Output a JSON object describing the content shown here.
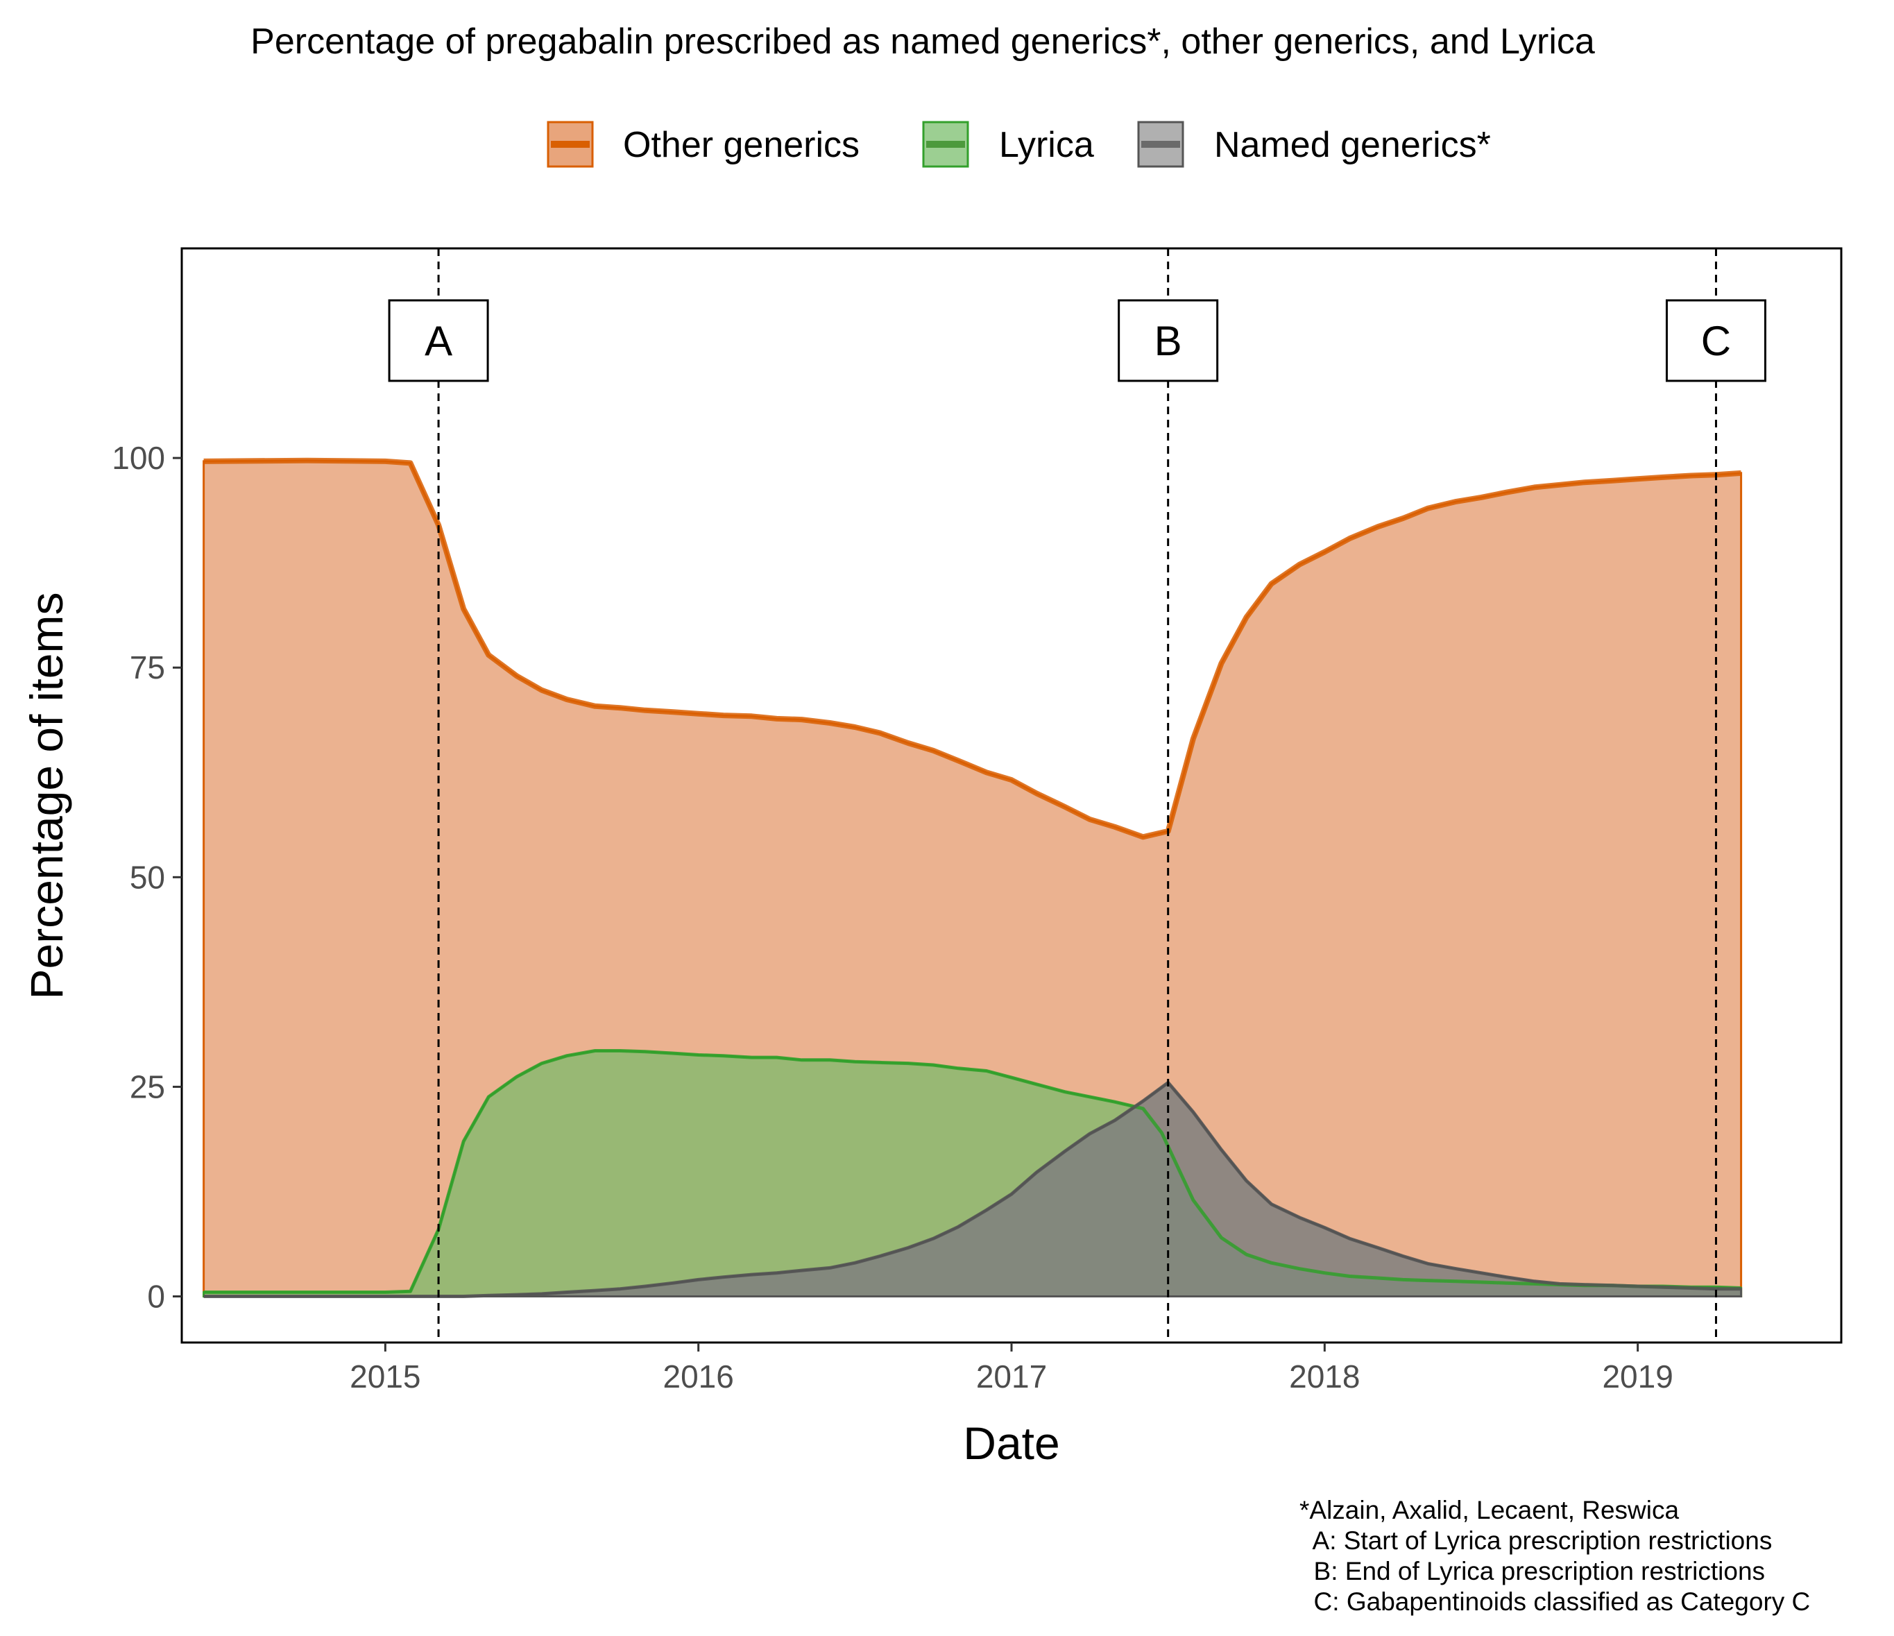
{
  "chart_data": {
    "type": "area",
    "title": "Percentage of pregabalin prescribed as named generics*, other generics, and Lyrica",
    "xlabel": "Date",
    "ylabel": "Percentage of items",
    "xlim": [
      2014.35,
      2019.65
    ],
    "ylim": [
      -5.5,
      125
    ],
    "x_ticks": [
      2015,
      2016,
      2017,
      2018,
      2019
    ],
    "y_ticks": [
      0,
      25,
      50,
      75,
      100
    ],
    "grid": false,
    "legend_position": "top",
    "series": [
      {
        "name": "Other generics",
        "stroke": "#d95f02",
        "fill": "#e8a57c",
        "points": [
          [
            2014.42,
            99.6
          ],
          [
            2014.75,
            99.7
          ],
          [
            2015.0,
            99.6
          ],
          [
            2015.08,
            99.4
          ],
          [
            2015.17,
            92.0
          ],
          [
            2015.25,
            82.0
          ],
          [
            2015.33,
            76.5
          ],
          [
            2015.42,
            74.0
          ],
          [
            2015.5,
            72.3
          ],
          [
            2015.58,
            71.2
          ],
          [
            2015.67,
            70.4
          ],
          [
            2015.75,
            70.2
          ],
          [
            2015.83,
            69.9
          ],
          [
            2015.92,
            69.7
          ],
          [
            2016.0,
            69.5
          ],
          [
            2016.08,
            69.3
          ],
          [
            2016.17,
            69.2
          ],
          [
            2016.25,
            68.9
          ],
          [
            2016.33,
            68.8
          ],
          [
            2016.42,
            68.4
          ],
          [
            2016.5,
            67.9
          ],
          [
            2016.58,
            67.2
          ],
          [
            2016.67,
            66.0
          ],
          [
            2016.75,
            65.1
          ],
          [
            2016.83,
            63.9
          ],
          [
            2016.92,
            62.5
          ],
          [
            2017.0,
            61.6
          ],
          [
            2017.08,
            60.0
          ],
          [
            2017.17,
            58.4
          ],
          [
            2017.25,
            56.9
          ],
          [
            2017.33,
            56.0
          ],
          [
            2017.42,
            54.8
          ],
          [
            2017.5,
            55.5
          ],
          [
            2017.58,
            66.5
          ],
          [
            2017.67,
            75.5
          ],
          [
            2017.75,
            81.0
          ],
          [
            2017.83,
            85.0
          ],
          [
            2017.92,
            87.3
          ],
          [
            2018.0,
            88.8
          ],
          [
            2018.08,
            90.4
          ],
          [
            2018.17,
            91.8
          ],
          [
            2018.25,
            92.8
          ],
          [
            2018.33,
            94.0
          ],
          [
            2018.42,
            94.8
          ],
          [
            2018.5,
            95.3
          ],
          [
            2018.58,
            95.9
          ],
          [
            2018.67,
            96.5
          ],
          [
            2018.75,
            96.8
          ],
          [
            2018.83,
            97.1
          ],
          [
            2018.92,
            97.3
          ],
          [
            2019.0,
            97.5
          ],
          [
            2019.08,
            97.7
          ],
          [
            2019.17,
            97.9
          ],
          [
            2019.25,
            98.0
          ],
          [
            2019.33,
            98.2
          ]
        ]
      },
      {
        "name": "Lyrica",
        "stroke": "#33a02c",
        "fill": "#8ab870",
        "points": [
          [
            2014.42,
            0.5
          ],
          [
            2014.75,
            0.5
          ],
          [
            2015.0,
            0.5
          ],
          [
            2015.08,
            0.6
          ],
          [
            2015.17,
            8.0
          ],
          [
            2015.25,
            18.5
          ],
          [
            2015.33,
            23.8
          ],
          [
            2015.42,
            26.2
          ],
          [
            2015.5,
            27.8
          ],
          [
            2015.58,
            28.7
          ],
          [
            2015.67,
            29.3
          ],
          [
            2015.75,
            29.3
          ],
          [
            2015.83,
            29.2
          ],
          [
            2015.92,
            29.0
          ],
          [
            2016.0,
            28.8
          ],
          [
            2016.08,
            28.7
          ],
          [
            2016.17,
            28.5
          ],
          [
            2016.25,
            28.5
          ],
          [
            2016.33,
            28.2
          ],
          [
            2016.42,
            28.2
          ],
          [
            2016.5,
            28.0
          ],
          [
            2016.58,
            27.9
          ],
          [
            2016.67,
            27.8
          ],
          [
            2016.75,
            27.6
          ],
          [
            2016.83,
            27.2
          ],
          [
            2016.92,
            26.9
          ],
          [
            2017.0,
            26.1
          ],
          [
            2017.08,
            25.3
          ],
          [
            2017.17,
            24.4
          ],
          [
            2017.25,
            23.8
          ],
          [
            2017.33,
            23.2
          ],
          [
            2017.42,
            22.4
          ],
          [
            2017.48,
            19.5
          ],
          [
            2017.58,
            11.5
          ],
          [
            2017.67,
            7.0
          ],
          [
            2017.75,
            5.0
          ],
          [
            2017.83,
            4.0
          ],
          [
            2017.92,
            3.3
          ],
          [
            2018.0,
            2.8
          ],
          [
            2018.08,
            2.4
          ],
          [
            2018.17,
            2.2
          ],
          [
            2018.25,
            2.0
          ],
          [
            2018.33,
            1.9
          ],
          [
            2018.42,
            1.8
          ],
          [
            2018.5,
            1.7
          ],
          [
            2018.58,
            1.6
          ],
          [
            2018.67,
            1.5
          ],
          [
            2018.75,
            1.4
          ],
          [
            2018.83,
            1.3
          ],
          [
            2018.92,
            1.3
          ],
          [
            2019.0,
            1.2
          ],
          [
            2019.08,
            1.2
          ],
          [
            2019.17,
            1.1
          ],
          [
            2019.25,
            1.1
          ],
          [
            2019.33,
            1.0
          ]
        ]
      },
      {
        "name": "Named generics*",
        "stroke": "#555555",
        "fill": "#7f7f7f",
        "points": [
          [
            2014.42,
            0.0
          ],
          [
            2014.75,
            0.0
          ],
          [
            2015.0,
            0.0
          ],
          [
            2015.08,
            0.0
          ],
          [
            2015.17,
            0.0
          ],
          [
            2015.25,
            0.0
          ],
          [
            2015.33,
            0.1
          ],
          [
            2015.42,
            0.2
          ],
          [
            2015.5,
            0.3
          ],
          [
            2015.58,
            0.5
          ],
          [
            2015.67,
            0.7
          ],
          [
            2015.75,
            0.9
          ],
          [
            2015.83,
            1.2
          ],
          [
            2015.92,
            1.6
          ],
          [
            2016.0,
            2.0
          ],
          [
            2016.08,
            2.3
          ],
          [
            2016.17,
            2.6
          ],
          [
            2016.25,
            2.8
          ],
          [
            2016.33,
            3.1
          ],
          [
            2016.42,
            3.4
          ],
          [
            2016.5,
            4.0
          ],
          [
            2016.58,
            4.8
          ],
          [
            2016.67,
            5.8
          ],
          [
            2016.75,
            6.9
          ],
          [
            2016.83,
            8.3
          ],
          [
            2016.92,
            10.3
          ],
          [
            2017.0,
            12.2
          ],
          [
            2017.08,
            14.8
          ],
          [
            2017.17,
            17.3
          ],
          [
            2017.25,
            19.4
          ],
          [
            2017.33,
            21.0
          ],
          [
            2017.42,
            23.3
          ],
          [
            2017.5,
            25.5
          ],
          [
            2017.58,
            22.0
          ],
          [
            2017.67,
            17.5
          ],
          [
            2017.75,
            13.8
          ],
          [
            2017.83,
            11.0
          ],
          [
            2017.92,
            9.4
          ],
          [
            2018.0,
            8.2
          ],
          [
            2018.08,
            6.9
          ],
          [
            2018.17,
            5.8
          ],
          [
            2018.25,
            4.8
          ],
          [
            2018.33,
            3.9
          ],
          [
            2018.42,
            3.3
          ],
          [
            2018.5,
            2.8
          ],
          [
            2018.58,
            2.3
          ],
          [
            2018.67,
            1.8
          ],
          [
            2018.75,
            1.5
          ],
          [
            2018.83,
            1.4
          ],
          [
            2018.92,
            1.3
          ],
          [
            2019.0,
            1.2
          ],
          [
            2019.08,
            1.1
          ],
          [
            2019.17,
            1.0
          ],
          [
            2019.25,
            0.9
          ],
          [
            2019.33,
            0.9
          ]
        ]
      }
    ],
    "events": [
      {
        "label": "A",
        "x": 2015.17
      },
      {
        "label": "B",
        "x": 2017.5
      },
      {
        "label": "C",
        "x": 2019.25
      }
    ],
    "footnote": [
      "*Alzain, Axalid, Lecaent, Reswica",
      "  A: Start of Lyrica prescription restrictions",
      "  B: End of Lyrica prescription restrictions",
      "  C: Gabapentinoids classified as Category C"
    ]
  }
}
